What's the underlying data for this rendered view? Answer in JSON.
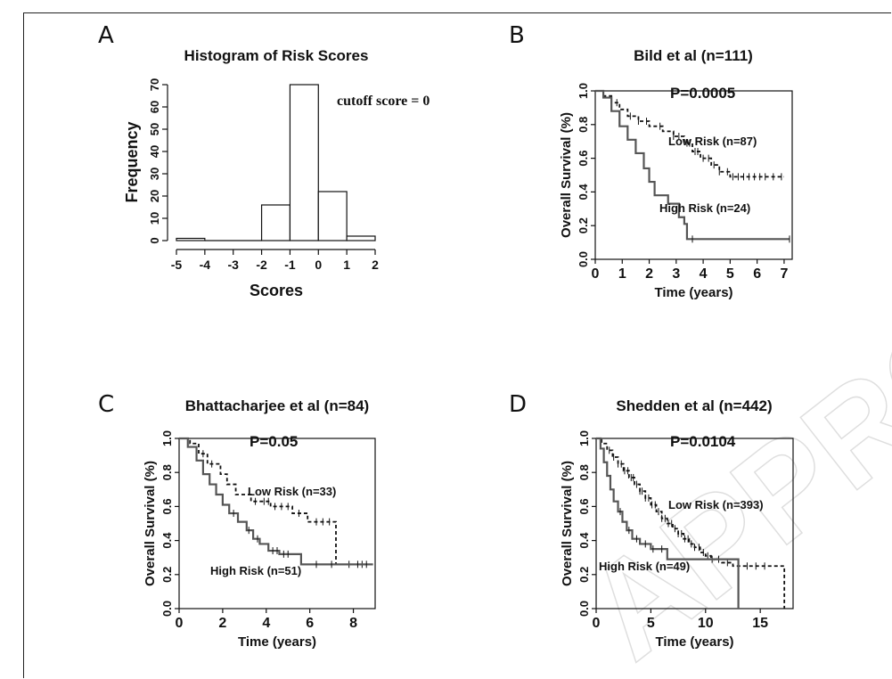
{
  "panels": {
    "A": {
      "letter": "A"
    },
    "B": {
      "letter": "B"
    },
    "C": {
      "letter": "C"
    },
    "D": {
      "letter": "D"
    }
  },
  "watermark": {
    "text": "APPROVED"
  },
  "chart_data": [
    {
      "id": "A",
      "type": "bar",
      "title": "Histogram of Risk Scores",
      "xlabel": "Scores",
      "ylabel": "Frequency",
      "annotation": "cutoff score = 0",
      "bins": [
        [
          -5,
          -4
        ],
        [
          -4,
          -3
        ],
        [
          -3,
          -2
        ],
        [
          -2,
          -1
        ],
        [
          -1,
          0
        ],
        [
          0,
          1
        ],
        [
          1,
          2
        ]
      ],
      "values": [
        1,
        0,
        0,
        16,
        70,
        22,
        2
      ],
      "xlim": [
        -5,
        2
      ],
      "ylim": [
        0,
        70
      ],
      "xticks": [
        "-5",
        "-4",
        "-3",
        "-2",
        "-1",
        "0",
        "1",
        "2"
      ],
      "yticks": [
        "0",
        "10",
        "20",
        "30",
        "40",
        "50",
        "60",
        "70"
      ]
    },
    {
      "id": "B",
      "type": "line",
      "title": "Bild et al (n=111)",
      "xlabel": "Time (years)",
      "ylabel": "Overall Survival (%)",
      "pvalue": "P=0.0005",
      "xlim": [
        0,
        7.3
      ],
      "ylim": [
        0,
        1
      ],
      "xticks": [
        "0",
        "1",
        "2",
        "3",
        "4",
        "5",
        "6",
        "7"
      ],
      "yticks": [
        "0.0",
        "0.2",
        "0.4",
        "0.6",
        "0.8",
        "1.0"
      ],
      "series": [
        {
          "name": "Low Risk (n=87)",
          "style": "dashed",
          "steps": [
            [
              0,
              1.0
            ],
            [
              0.3,
              0.97
            ],
            [
              0.6,
              0.93
            ],
            [
              0.9,
              0.89
            ],
            [
              1.2,
              0.85
            ],
            [
              1.6,
              0.82
            ],
            [
              2.0,
              0.79
            ],
            [
              2.5,
              0.76
            ],
            [
              2.9,
              0.73
            ],
            [
              3.3,
              0.69
            ],
            [
              3.6,
              0.64
            ],
            [
              3.9,
              0.6
            ],
            [
              4.3,
              0.56
            ],
            [
              4.6,
              0.52
            ],
            [
              5.0,
              0.49
            ],
            [
              7.0,
              0.49
            ]
          ],
          "censor": [
            0.8,
            1.3,
            1.6,
            1.9,
            2.4,
            2.9,
            3.1,
            3.4,
            3.5,
            3.7,
            3.8,
            4.0,
            4.2,
            4.4,
            4.6,
            4.9,
            5.1,
            5.3,
            5.5,
            5.7,
            5.9,
            6.1,
            6.3,
            6.6,
            6.9
          ]
        },
        {
          "name": "High Risk (n=24)",
          "style": "solid",
          "steps": [
            [
              0,
              1.0
            ],
            [
              0.3,
              0.96
            ],
            [
              0.6,
              0.88
            ],
            [
              0.9,
              0.79
            ],
            [
              1.2,
              0.71
            ],
            [
              1.5,
              0.63
            ],
            [
              1.8,
              0.54
            ],
            [
              2.0,
              0.46
            ],
            [
              2.2,
              0.38
            ],
            [
              2.7,
              0.33
            ],
            [
              3.1,
              0.25
            ],
            [
              3.3,
              0.21
            ],
            [
              3.4,
              0.12
            ],
            [
              7.2,
              0.12
            ]
          ],
          "censor": [
            3.6,
            7.2
          ]
        }
      ]
    },
    {
      "id": "C",
      "type": "line",
      "title": "Bhattacharjee et al (n=84)",
      "xlabel": "Time (years)",
      "ylabel": "Overall Survival (%)",
      "pvalue": "P=0.05",
      "xlim": [
        0,
        9
      ],
      "ylim": [
        0,
        1
      ],
      "xticks": [
        "0",
        "2",
        "4",
        "6",
        "8"
      ],
      "yticks": [
        "0.0",
        "0.2",
        "0.4",
        "0.6",
        "0.8",
        "1.0"
      ],
      "series": [
        {
          "name": "Low Risk (n=33)",
          "style": "dashed",
          "steps": [
            [
              0,
              1.0
            ],
            [
              0.5,
              0.97
            ],
            [
              0.9,
              0.91
            ],
            [
              1.3,
              0.85
            ],
            [
              1.9,
              0.79
            ],
            [
              2.2,
              0.73
            ],
            [
              2.6,
              0.67
            ],
            [
              3.3,
              0.63
            ],
            [
              4.2,
              0.6
            ],
            [
              5.2,
              0.56
            ],
            [
              5.9,
              0.51
            ],
            [
              7.2,
              0.26
            ],
            [
              8.9,
              0.26
            ]
          ],
          "censor": [
            1.1,
            1.5,
            3.5,
            3.9,
            4.1,
            4.4,
            4.7,
            5.0,
            5.5,
            6.3,
            6.6,
            6.9,
            7.8,
            8.4
          ]
        },
        {
          "name": "High Risk (n=51)",
          "style": "solid",
          "steps": [
            [
              0,
              1.0
            ],
            [
              0.4,
              0.95
            ],
            [
              0.8,
              0.87
            ],
            [
              1.1,
              0.79
            ],
            [
              1.4,
              0.73
            ],
            [
              1.7,
              0.67
            ],
            [
              2.0,
              0.61
            ],
            [
              2.3,
              0.56
            ],
            [
              2.7,
              0.51
            ],
            [
              3.1,
              0.46
            ],
            [
              3.4,
              0.41
            ],
            [
              3.7,
              0.38
            ],
            [
              4.1,
              0.34
            ],
            [
              4.6,
              0.32
            ],
            [
              5.6,
              0.26
            ],
            [
              8.9,
              0.26
            ]
          ],
          "censor": [
            2.5,
            3.2,
            3.6,
            4.3,
            4.5,
            4.8,
            5.0,
            6.3,
            7.0,
            8.2,
            8.6
          ]
        }
      ]
    },
    {
      "id": "D",
      "type": "line",
      "title": "Shedden et al (n=442)",
      "xlabel": "Time (years)",
      "ylabel": "Overall Survival (%)",
      "pvalue": "P=0.0104",
      "xlim": [
        0,
        18
      ],
      "ylim": [
        0,
        1
      ],
      "xticks": [
        "0",
        "5",
        "10",
        "15"
      ],
      "yticks": [
        "0.0",
        "0.2",
        "0.4",
        "0.6",
        "0.8",
        "1.0"
      ],
      "series": [
        {
          "name": "Low Risk (n=393)",
          "style": "dashed",
          "steps": [
            [
              0,
              1.0
            ],
            [
              0.5,
              0.97
            ],
            [
              1,
              0.93
            ],
            [
              1.5,
              0.89
            ],
            [
              2,
              0.85
            ],
            [
              2.5,
              0.81
            ],
            [
              3,
              0.77
            ],
            [
              3.5,
              0.73
            ],
            [
              4,
              0.69
            ],
            [
              4.5,
              0.65
            ],
            [
              5,
              0.61
            ],
            [
              5.5,
              0.57
            ],
            [
              6,
              0.53
            ],
            [
              6.5,
              0.5
            ],
            [
              7,
              0.47
            ],
            [
              7.5,
              0.44
            ],
            [
              8,
              0.41
            ],
            [
              8.5,
              0.38
            ],
            [
              9,
              0.36
            ],
            [
              9.5,
              0.33
            ],
            [
              10,
              0.31
            ],
            [
              10.5,
              0.29
            ],
            [
              11.5,
              0.27
            ],
            [
              12.5,
              0.25
            ],
            [
              17,
              0.25
            ],
            [
              17.2,
              0.0
            ]
          ],
          "censor": [
            1.2,
            1.6,
            2.0,
            2.3,
            2.6,
            2.9,
            3.2,
            3.4,
            3.7,
            4.0,
            4.2,
            4.5,
            4.8,
            5.1,
            5.4,
            5.7,
            6.0,
            6.3,
            6.6,
            6.9,
            7.2,
            7.5,
            7.8,
            8.1,
            8.4,
            8.7,
            9.0,
            9.4,
            9.8,
            10.2,
            10.6,
            11.2,
            12.0,
            13.0,
            13.8,
            14.6,
            15.4
          ]
        },
        {
          "name": "High Risk (n=49)",
          "style": "solid",
          "steps": [
            [
              0,
              1.0
            ],
            [
              0.4,
              0.94
            ],
            [
              0.7,
              0.86
            ],
            [
              1.0,
              0.78
            ],
            [
              1.3,
              0.7
            ],
            [
              1.6,
              0.63
            ],
            [
              2.0,
              0.57
            ],
            [
              2.4,
              0.51
            ],
            [
              2.8,
              0.46
            ],
            [
              3.3,
              0.41
            ],
            [
              4.0,
              0.38
            ],
            [
              5.0,
              0.35
            ],
            [
              6.5,
              0.29
            ],
            [
              12.8,
              0.29
            ],
            [
              13.0,
              0.0
            ]
          ],
          "censor": [
            2.2,
            3.0,
            3.7,
            4.5,
            5.2,
            6.0
          ]
        }
      ]
    }
  ]
}
